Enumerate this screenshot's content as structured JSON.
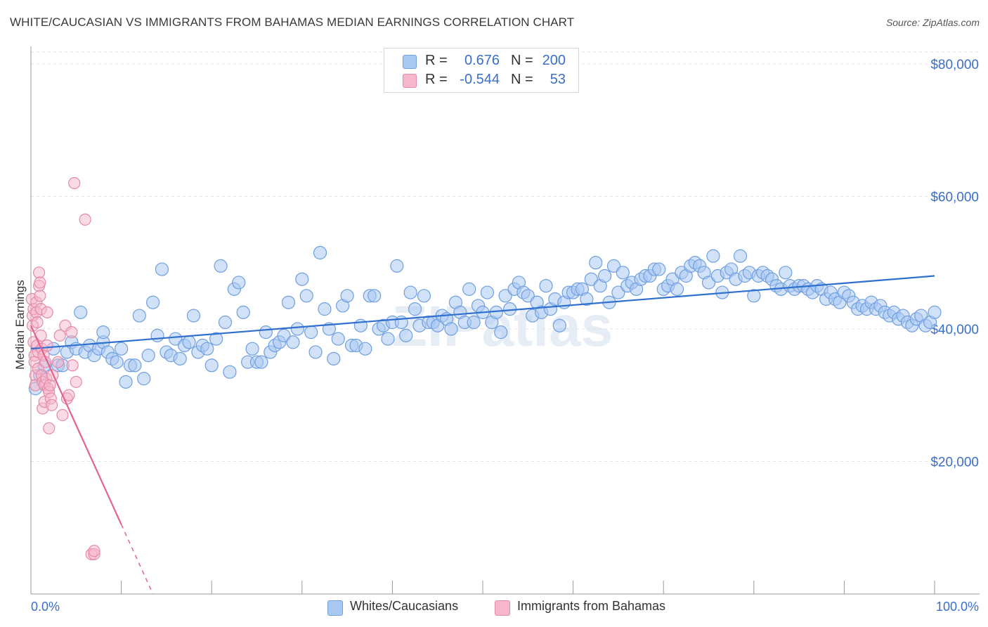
{
  "title": "WHITE/CAUCASIAN VS IMMIGRANTS FROM BAHAMAS MEDIAN EARNINGS CORRELATION CHART",
  "source": "Source: ZipAtlas.com",
  "watermark": "ZIPatlas",
  "colors": {
    "blue_fill": "#a9c9f2",
    "blue_stroke": "#6f9fe0",
    "blue_line": "#2e6fcf",
    "pink_fill": "#f6b6cb",
    "pink_stroke": "#e58aa8",
    "pink_line": "#e2628f",
    "axis_text": "#3a6fc7",
    "grid": "#e2e2e2"
  },
  "legend_top": [
    {
      "r_label": "R =",
      "r_value": "0.676",
      "n_label": "N =",
      "n_value": "200"
    },
    {
      "r_label": "R =",
      "r_value": "-0.544",
      "n_label": "N =",
      "n_value": "53"
    }
  ],
  "legend_bottom": [
    "Whites/Caucasians",
    "Immigrants from Bahamas"
  ],
  "chart_data": {
    "type": "scatter",
    "title": "WHITE/CAUCASIAN VS IMMIGRANTS FROM BAHAMAS MEDIAN EARNINGS CORRELATION CHART",
    "xlabel": "",
    "ylabel": "Median Earnings",
    "xlim": [
      0,
      100
    ],
    "ylim": [
      0,
      82000
    ],
    "x_tick_labels": [
      "0.0%",
      "100.0%"
    ],
    "y_ticks": [
      20000,
      40000,
      60000,
      80000
    ],
    "y_tick_labels": [
      "$20,000",
      "$40,000",
      "$60,000",
      "$80,000"
    ],
    "grid": true,
    "legend_position": "top-center",
    "series": [
      {
        "name": "Whites/Caucasians",
        "R": 0.676,
        "N": 200,
        "trend": {
          "x": [
            0.0,
            100.0
          ],
          "y": [
            37000,
            48000
          ]
        },
        "points": [
          [
            0.5,
            31000
          ],
          [
            1.0,
            33000
          ],
          [
            1.5,
            34500
          ],
          [
            2.5,
            37000
          ],
          [
            3.0,
            34500
          ],
          [
            3.5,
            34500
          ],
          [
            4.0,
            36500
          ],
          [
            4.5,
            38000
          ],
          [
            5.0,
            37000
          ],
          [
            5.5,
            42500
          ],
          [
            6.0,
            36500
          ],
          [
            6.5,
            37500
          ],
          [
            7.0,
            36000
          ],
          [
            7.5,
            37000
          ],
          [
            8.0,
            38000
          ],
          [
            8.0,
            39500
          ],
          [
            8.5,
            36500
          ],
          [
            9.0,
            35500
          ],
          [
            9.5,
            35000
          ],
          [
            10.0,
            37000
          ],
          [
            10.5,
            32000
          ],
          [
            11.0,
            34500
          ],
          [
            11.5,
            34500
          ],
          [
            12.0,
            42000
          ],
          [
            12.5,
            32500
          ],
          [
            13.0,
            36000
          ],
          [
            13.5,
            44000
          ],
          [
            14.0,
            39000
          ],
          [
            14.5,
            49000
          ],
          [
            15.0,
            36500
          ],
          [
            15.5,
            36000
          ],
          [
            16.0,
            38500
          ],
          [
            16.5,
            35500
          ],
          [
            17.0,
            37500
          ],
          [
            17.5,
            38000
          ],
          [
            18.0,
            42000
          ],
          [
            18.5,
            36500
          ],
          [
            19.0,
            37500
          ],
          [
            19.5,
            37000
          ],
          [
            20.0,
            34500
          ],
          [
            20.5,
            38500
          ],
          [
            21.0,
            49500
          ],
          [
            21.5,
            41000
          ],
          [
            22.0,
            33500
          ],
          [
            22.5,
            46000
          ],
          [
            23.0,
            47000
          ],
          [
            23.5,
            42500
          ],
          [
            24.0,
            35000
          ],
          [
            24.5,
            37000
          ],
          [
            25.0,
            35000
          ],
          [
            25.5,
            35000
          ],
          [
            26.0,
            39500
          ],
          [
            26.5,
            36500
          ],
          [
            27.0,
            37500
          ],
          [
            27.5,
            38000
          ],
          [
            28.0,
            39000
          ],
          [
            28.5,
            44000
          ],
          [
            29.0,
            38000
          ],
          [
            29.5,
            40000
          ],
          [
            30.0,
            47500
          ],
          [
            30.5,
            45000
          ],
          [
            31.0,
            39500
          ],
          [
            31.5,
            36500
          ],
          [
            32.0,
            51500
          ],
          [
            32.5,
            43000
          ],
          [
            33.0,
            40000
          ],
          [
            33.5,
            35500
          ],
          [
            34.0,
            38500
          ],
          [
            34.5,
            43500
          ],
          [
            35.0,
            45000
          ],
          [
            35.5,
            37500
          ],
          [
            36.0,
            37500
          ],
          [
            36.5,
            40500
          ],
          [
            37.0,
            37000
          ],
          [
            37.5,
            45000
          ],
          [
            38.0,
            45000
          ],
          [
            38.5,
            40000
          ],
          [
            39.0,
            40500
          ],
          [
            39.5,
            38500
          ],
          [
            40.0,
            41000
          ],
          [
            40.5,
            49500
          ],
          [
            41.0,
            41000
          ],
          [
            41.5,
            39000
          ],
          [
            42.0,
            45500
          ],
          [
            42.5,
            43000
          ],
          [
            43.0,
            40500
          ],
          [
            43.5,
            45000
          ],
          [
            44.0,
            41000
          ],
          [
            44.5,
            41000
          ],
          [
            45.0,
            40500
          ],
          [
            45.5,
            42000
          ],
          [
            46.0,
            41500
          ],
          [
            46.5,
            40000
          ],
          [
            47.0,
            44000
          ],
          [
            47.5,
            42500
          ],
          [
            48.0,
            41000
          ],
          [
            48.5,
            46000
          ],
          [
            49.0,
            41000
          ],
          [
            49.5,
            43500
          ],
          [
            50.0,
            42500
          ],
          [
            50.5,
            45500
          ],
          [
            51.0,
            41000
          ],
          [
            51.5,
            42500
          ],
          [
            52.0,
            39500
          ],
          [
            52.5,
            45000
          ],
          [
            53.0,
            43000
          ],
          [
            53.5,
            46000
          ],
          [
            54.0,
            47000
          ],
          [
            54.5,
            45500
          ],
          [
            55.0,
            45000
          ],
          [
            55.5,
            42000
          ],
          [
            56.0,
            44000
          ],
          [
            56.5,
            42500
          ],
          [
            57.0,
            46500
          ],
          [
            57.5,
            43000
          ],
          [
            58.0,
            44500
          ],
          [
            58.5,
            40500
          ],
          [
            59.0,
            44000
          ],
          [
            59.5,
            45500
          ],
          [
            60.0,
            45500
          ],
          [
            60.5,
            46000
          ],
          [
            61.0,
            46000
          ],
          [
            61.5,
            44500
          ],
          [
            62.0,
            47500
          ],
          [
            62.5,
            50000
          ],
          [
            63.0,
            46500
          ],
          [
            63.5,
            48000
          ],
          [
            64.0,
            44000
          ],
          [
            64.5,
            49500
          ],
          [
            65.0,
            45500
          ],
          [
            65.5,
            48500
          ],
          [
            66.0,
            46500
          ],
          [
            66.5,
            47000
          ],
          [
            67.0,
            46000
          ],
          [
            67.5,
            47500
          ],
          [
            68.0,
            48000
          ],
          [
            68.5,
            48000
          ],
          [
            69.0,
            49000
          ],
          [
            69.5,
            49000
          ],
          [
            70.0,
            46000
          ],
          [
            70.5,
            46500
          ],
          [
            71.0,
            47500
          ],
          [
            71.5,
            46000
          ],
          [
            72.0,
            48500
          ],
          [
            72.5,
            48000
          ],
          [
            73.0,
            49500
          ],
          [
            73.5,
            50000
          ],
          [
            74.0,
            49500
          ],
          [
            74.5,
            48500
          ],
          [
            75.0,
            47000
          ],
          [
            75.5,
            51000
          ],
          [
            76.0,
            48000
          ],
          [
            76.5,
            45500
          ],
          [
            77.0,
            48500
          ],
          [
            77.5,
            49000
          ],
          [
            78.0,
            47500
          ],
          [
            78.5,
            51000
          ],
          [
            79.0,
            48000
          ],
          [
            79.5,
            48500
          ],
          [
            80.0,
            45000
          ],
          [
            80.5,
            48000
          ],
          [
            81.0,
            48500
          ],
          [
            81.5,
            48000
          ],
          [
            82.0,
            47500
          ],
          [
            82.5,
            46500
          ],
          [
            83.0,
            46000
          ],
          [
            83.5,
            48500
          ],
          [
            84.0,
            46500
          ],
          [
            84.5,
            46000
          ],
          [
            85.0,
            46500
          ],
          [
            85.5,
            46500
          ],
          [
            86.0,
            46000
          ],
          [
            86.5,
            45500
          ],
          [
            87.0,
            46500
          ],
          [
            87.5,
            46000
          ],
          [
            88.0,
            44500
          ],
          [
            88.5,
            45500
          ],
          [
            89.0,
            44500
          ],
          [
            89.5,
            44000
          ],
          [
            90.0,
            45500
          ],
          [
            90.5,
            45000
          ],
          [
            91.0,
            44000
          ],
          [
            91.5,
            43000
          ],
          [
            92.0,
            43500
          ],
          [
            92.5,
            43000
          ],
          [
            93.0,
            44000
          ],
          [
            93.5,
            43000
          ],
          [
            94.0,
            43500
          ],
          [
            94.5,
            42500
          ],
          [
            95.0,
            42000
          ],
          [
            95.5,
            42500
          ],
          [
            96.0,
            41500
          ],
          [
            96.5,
            42000
          ],
          [
            97.0,
            41000
          ],
          [
            97.5,
            40500
          ],
          [
            98.0,
            41500
          ],
          [
            98.5,
            42000
          ],
          [
            99.0,
            40500
          ],
          [
            99.5,
            41000
          ],
          [
            100.0,
            42500
          ]
        ]
      },
      {
        "name": "Immigrants from Bahamas",
        "R": -0.544,
        "N": 53,
        "trend": {
          "x": [
            0.0,
            10.0
          ],
          "y": [
            40500,
            10500
          ],
          "dashed_to": {
            "x": 13.5,
            "y": 0
          }
        },
        "points": [
          [
            0.1,
            44500
          ],
          [
            0.2,
            42000
          ],
          [
            0.2,
            40500
          ],
          [
            0.3,
            43000
          ],
          [
            0.3,
            38000
          ],
          [
            0.4,
            36000
          ],
          [
            0.4,
            35000
          ],
          [
            0.5,
            33000
          ],
          [
            0.5,
            31500
          ],
          [
            0.6,
            44000
          ],
          [
            0.6,
            42500
          ],
          [
            0.7,
            41000
          ],
          [
            0.7,
            37500
          ],
          [
            0.8,
            36500
          ],
          [
            0.8,
            34000
          ],
          [
            0.9,
            46500
          ],
          [
            0.9,
            48500
          ],
          [
            1.0,
            47000
          ],
          [
            1.0,
            45000
          ],
          [
            1.1,
            43000
          ],
          [
            1.1,
            39000
          ],
          [
            1.2,
            37000
          ],
          [
            1.2,
            33000
          ],
          [
            1.3,
            32000
          ],
          [
            1.3,
            28000
          ],
          [
            1.4,
            36000
          ],
          [
            1.5,
            29000
          ],
          [
            1.5,
            31500
          ],
          [
            1.6,
            35000
          ],
          [
            1.7,
            32500
          ],
          [
            1.8,
            42500
          ],
          [
            1.8,
            37500
          ],
          [
            1.9,
            31000
          ],
          [
            2.0,
            30500
          ],
          [
            2.0,
            25000
          ],
          [
            2.1,
            31500
          ],
          [
            2.2,
            29500
          ],
          [
            2.3,
            28500
          ],
          [
            2.4,
            33000
          ],
          [
            3.0,
            35000
          ],
          [
            3.2,
            39000
          ],
          [
            3.5,
            27000
          ],
          [
            3.8,
            40500
          ],
          [
            4.0,
            29500
          ],
          [
            4.2,
            30000
          ],
          [
            4.5,
            39500
          ],
          [
            4.6,
            34500
          ],
          [
            4.8,
            62000
          ],
          [
            5.0,
            32000
          ],
          [
            6.0,
            56500
          ],
          [
            6.7,
            6000
          ],
          [
            7.0,
            6000
          ],
          [
            7.0,
            6500
          ]
        ]
      }
    ]
  }
}
